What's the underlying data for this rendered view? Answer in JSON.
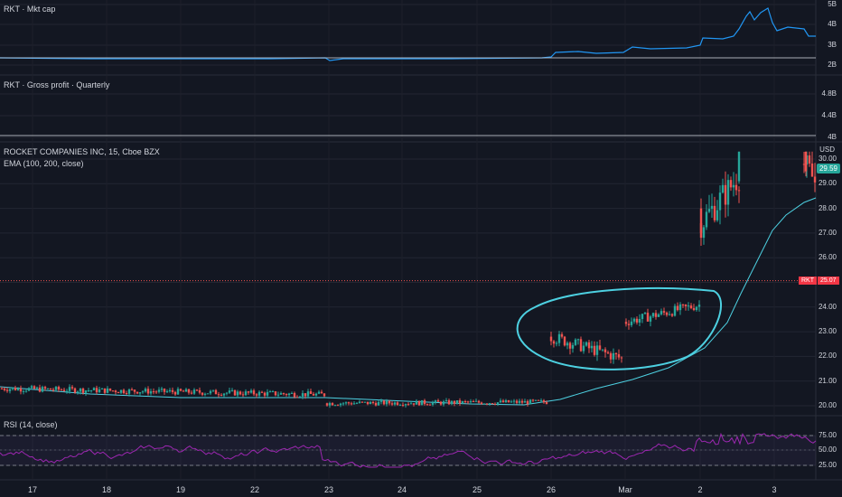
{
  "panes": {
    "mktcap": {
      "label": "RKT · Mkt cap",
      "ticks": [
        "5B",
        "4B",
        "3B",
        "2B"
      ]
    },
    "gross": {
      "label": "RKT · Gross profit · Quarterly",
      "ticks": [
        "4.8B",
        "4.4B",
        "4B"
      ]
    },
    "main": {
      "title": "ROCKET COMPANIES INC, 15, Cboe BZX",
      "ema_label": "EMA (100, 200, close)",
      "currency": "USD",
      "ticks": [
        "30.00",
        "29.00",
        "28.00",
        "27.00",
        "26.00",
        "25.00",
        "24.00",
        "23.00",
        "22.00",
        "21.00",
        "20.00"
      ],
      "last_price_tag": "29.59",
      "rkt_symbol": "RKT",
      "rkt_price": "25.07"
    },
    "rsi": {
      "label": "RSI (14, close)",
      "ticks": [
        "75.00",
        "50.00",
        "25.00"
      ]
    }
  },
  "x_axis": {
    "labels": [
      "17",
      "18",
      "19",
      "22",
      "23",
      "24",
      "25",
      "26",
      "Mar",
      "2",
      "3"
    ]
  },
  "colors": {
    "up": "#26a69a",
    "down": "#ef5350",
    "ema": "#4dd0e1",
    "mktcap": "#2196f3",
    "rsi": "#9c27b0",
    "highlight_circle": "#4dd0e1"
  }
}
